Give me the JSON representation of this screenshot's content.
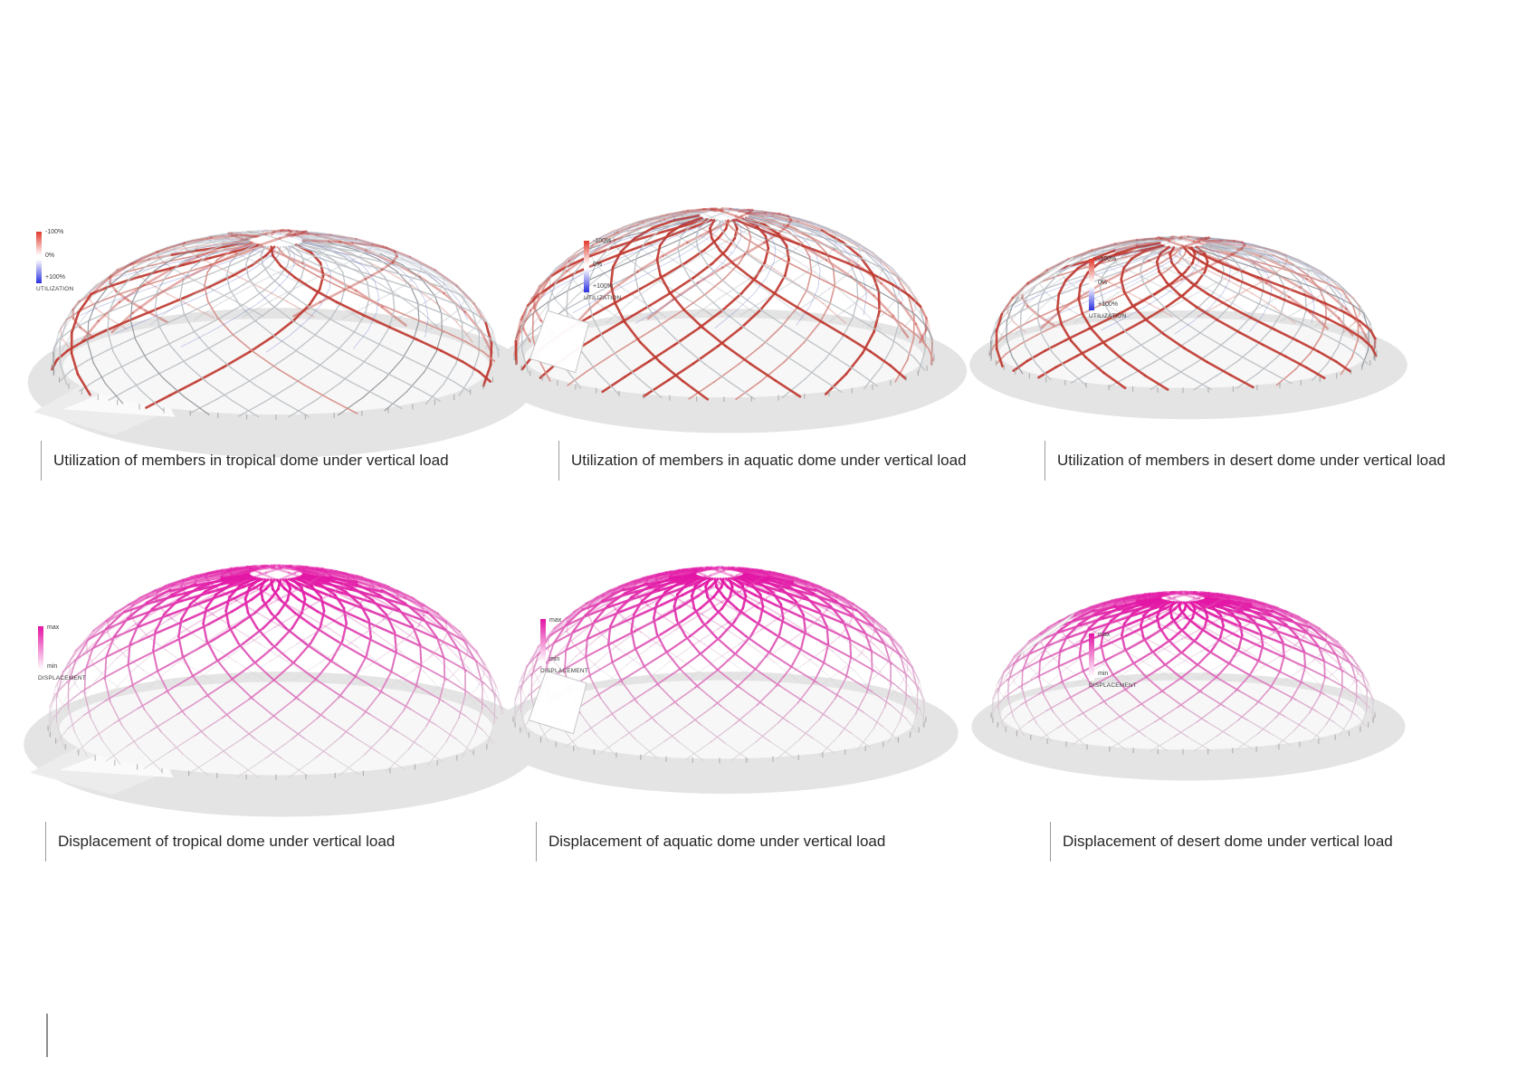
{
  "colors": {
    "utilization_negative": "#e13a2c",
    "utilization_zero": "#ffffff",
    "utilization_positive": "#2c31e0",
    "displacement_max": "#e312a4",
    "displacement_min": "#ffffff",
    "member_red": "#bf3a31",
    "member_red_light": "#d68e88",
    "member_gray_dark": "#8f9398",
    "member_gray_light": "#bdc1c6",
    "member_blue": "#6673cb",
    "member_magenta": "#e312a4",
    "member_base_gray": "#d8d8d8",
    "shadow": "#e4e4e4",
    "shadow_light": "#ececec",
    "floor": "#f7f7f7",
    "caption_text": "#262626",
    "caption_bar": "#9a9a9a"
  },
  "panels": [
    {
      "kind": "utilization",
      "caption": "Utilization of members in tropical dome under vertical load",
      "legend": {
        "labels": [
          "-100%",
          "0%",
          "+100%"
        ],
        "title": "UTILIZATION"
      }
    },
    {
      "kind": "utilization",
      "caption": "Utilization of members in aquatic dome under vertical load",
      "legend": {
        "labels": [
          "-100%",
          "0%",
          "+100%"
        ],
        "title": "UTILIZATION"
      }
    },
    {
      "kind": "utilization",
      "caption": "Utilization of members in desert dome under vertical load",
      "legend": {
        "labels": [
          "-100%",
          "0%",
          "+100%"
        ],
        "title": "UTILIZATION"
      }
    },
    {
      "kind": "displacement",
      "caption": "Displacement of tropical dome under vertical load",
      "legend": {
        "labels": [
          "max",
          "min"
        ],
        "title": "DISPLACEMENT"
      }
    },
    {
      "kind": "displacement",
      "caption": "Displacement of aquatic dome under vertical load",
      "legend": {
        "labels": [
          "max",
          "min"
        ],
        "title": "DISPLACEMENT"
      }
    },
    {
      "kind": "displacement",
      "caption": "Displacement of desert dome under vertical load",
      "legend": {
        "labels": [
          "max",
          "min"
        ],
        "title": "DISPLACEMENT"
      }
    }
  ]
}
